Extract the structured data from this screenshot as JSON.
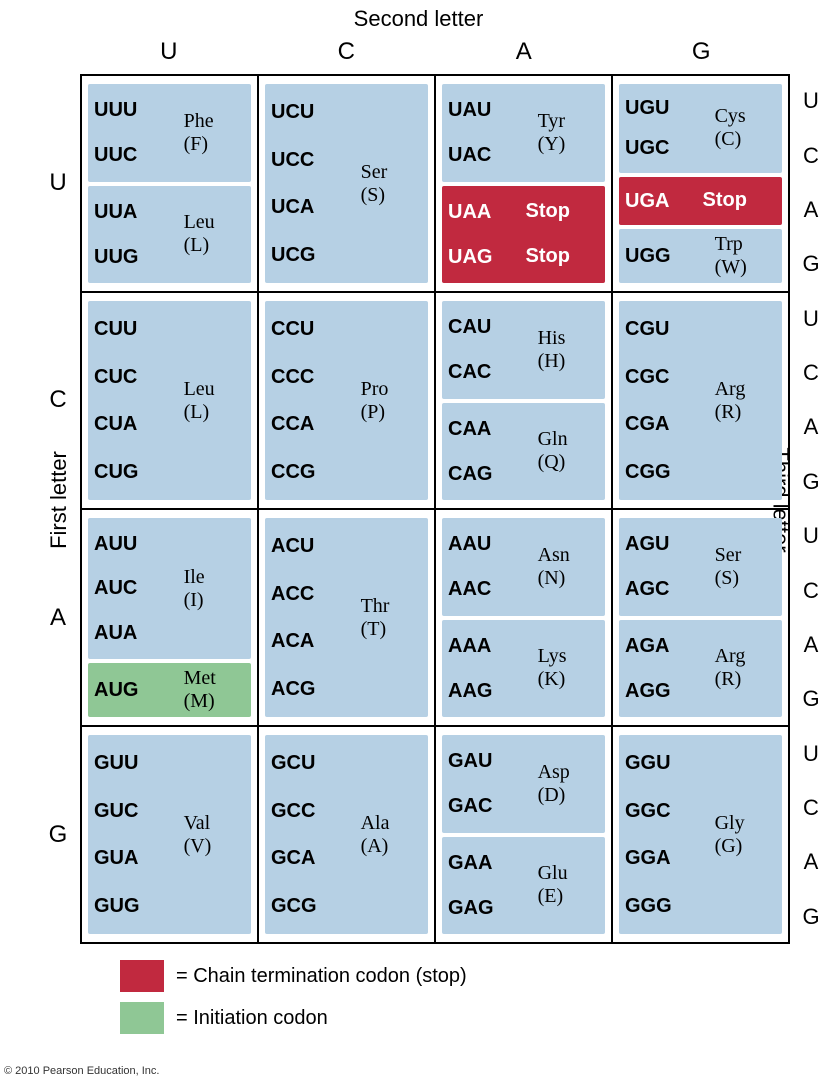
{
  "titles": {
    "top": "Second letter",
    "left": "First letter",
    "right": "Third letter"
  },
  "col_headers": [
    "U",
    "C",
    "A",
    "G"
  ],
  "row_headers_left": [
    "U",
    "C",
    "A",
    "G"
  ],
  "third_letters": [
    "U",
    "C",
    "A",
    "G"
  ],
  "colors": {
    "normal_bg": "#b6d0e4",
    "stop_bg": "#c1293f",
    "start_bg": "#8fc795",
    "border": "#000000",
    "bg": "#ffffff"
  },
  "legend": {
    "stop": "= Chain termination codon (stop)",
    "start": "= Initiation codon"
  },
  "copyright": "© 2010 Pearson Education, Inc.",
  "grid": [
    [
      [
        {
          "type": "normal",
          "codons": [
            "UUU",
            "UUC"
          ],
          "aa": "Phe",
          "abbr": "(F)"
        },
        {
          "type": "normal",
          "codons": [
            "UUA",
            "UUG"
          ],
          "aa": "Leu",
          "abbr": "(L)"
        }
      ],
      [
        {
          "type": "normal",
          "codons": [
            "UCU",
            "UCC",
            "UCA",
            "UCG"
          ],
          "aa": "Ser",
          "abbr": "(S)"
        }
      ],
      [
        {
          "type": "normal",
          "codons": [
            "UAU",
            "UAC"
          ],
          "aa": "Tyr",
          "abbr": "(Y)"
        },
        {
          "type": "stop",
          "codons": [
            "UAA",
            "UAG"
          ],
          "aa": "Stop",
          "abbr": "Stop",
          "perCodonAA": true
        }
      ],
      [
        {
          "type": "normal",
          "codons": [
            "UGU",
            "UGC"
          ],
          "aa": "Cys",
          "abbr": "(C)"
        },
        {
          "type": "stop",
          "codons": [
            "UGA"
          ],
          "aa": "Stop",
          "abbr": ""
        },
        {
          "type": "normal",
          "codons": [
            "UGG"
          ],
          "aa": "Trp",
          "abbr": "(W)"
        }
      ]
    ],
    [
      [
        {
          "type": "normal",
          "codons": [
            "CUU",
            "CUC",
            "CUA",
            "CUG"
          ],
          "aa": "Leu",
          "abbr": "(L)"
        }
      ],
      [
        {
          "type": "normal",
          "codons": [
            "CCU",
            "CCC",
            "CCA",
            "CCG"
          ],
          "aa": "Pro",
          "abbr": "(P)"
        }
      ],
      [
        {
          "type": "normal",
          "codons": [
            "CAU",
            "CAC"
          ],
          "aa": "His",
          "abbr": "(H)"
        },
        {
          "type": "normal",
          "codons": [
            "CAA",
            "CAG"
          ],
          "aa": "Gln",
          "abbr": "(Q)"
        }
      ],
      [
        {
          "type": "normal",
          "codons": [
            "CGU",
            "CGC",
            "CGA",
            "CGG"
          ],
          "aa": "Arg",
          "abbr": "(R)"
        }
      ]
    ],
    [
      [
        {
          "type": "normal",
          "codons": [
            "AUU",
            "AUC",
            "AUA"
          ],
          "aa": "Ile",
          "abbr": "(I)"
        },
        {
          "type": "start",
          "codons": [
            "AUG"
          ],
          "aa": "Met",
          "abbr": "(M)"
        }
      ],
      [
        {
          "type": "normal",
          "codons": [
            "ACU",
            "ACC",
            "ACA",
            "ACG"
          ],
          "aa": "Thr",
          "abbr": "(T)"
        }
      ],
      [
        {
          "type": "normal",
          "codons": [
            "AAU",
            "AAC"
          ],
          "aa": "Asn",
          "abbr": "(N)"
        },
        {
          "type": "normal",
          "codons": [
            "AAA",
            "AAG"
          ],
          "aa": "Lys",
          "abbr": "(K)"
        }
      ],
      [
        {
          "type": "normal",
          "codons": [
            "AGU",
            "AGC"
          ],
          "aa": "Ser",
          "abbr": "(S)"
        },
        {
          "type": "normal",
          "codons": [
            "AGA",
            "AGG"
          ],
          "aa": "Arg",
          "abbr": "(R)"
        }
      ]
    ],
    [
      [
        {
          "type": "normal",
          "codons": [
            "GUU",
            "GUC",
            "GUA",
            "GUG"
          ],
          "aa": "Val",
          "abbr": "(V)"
        }
      ],
      [
        {
          "type": "normal",
          "codons": [
            "GCU",
            "GCC",
            "GCA",
            "GCG"
          ],
          "aa": "Ala",
          "abbr": "(A)"
        }
      ],
      [
        {
          "type": "normal",
          "codons": [
            "GAU",
            "GAC"
          ],
          "aa": "Asp",
          "abbr": "(D)"
        },
        {
          "type": "normal",
          "codons": [
            "GAA",
            "GAG"
          ],
          "aa": "Glu",
          "abbr": "(E)"
        }
      ],
      [
        {
          "type": "normal",
          "codons": [
            "GGU",
            "GGC",
            "GGA",
            "GGG"
          ],
          "aa": "Gly",
          "abbr": "(G)"
        }
      ]
    ]
  ]
}
